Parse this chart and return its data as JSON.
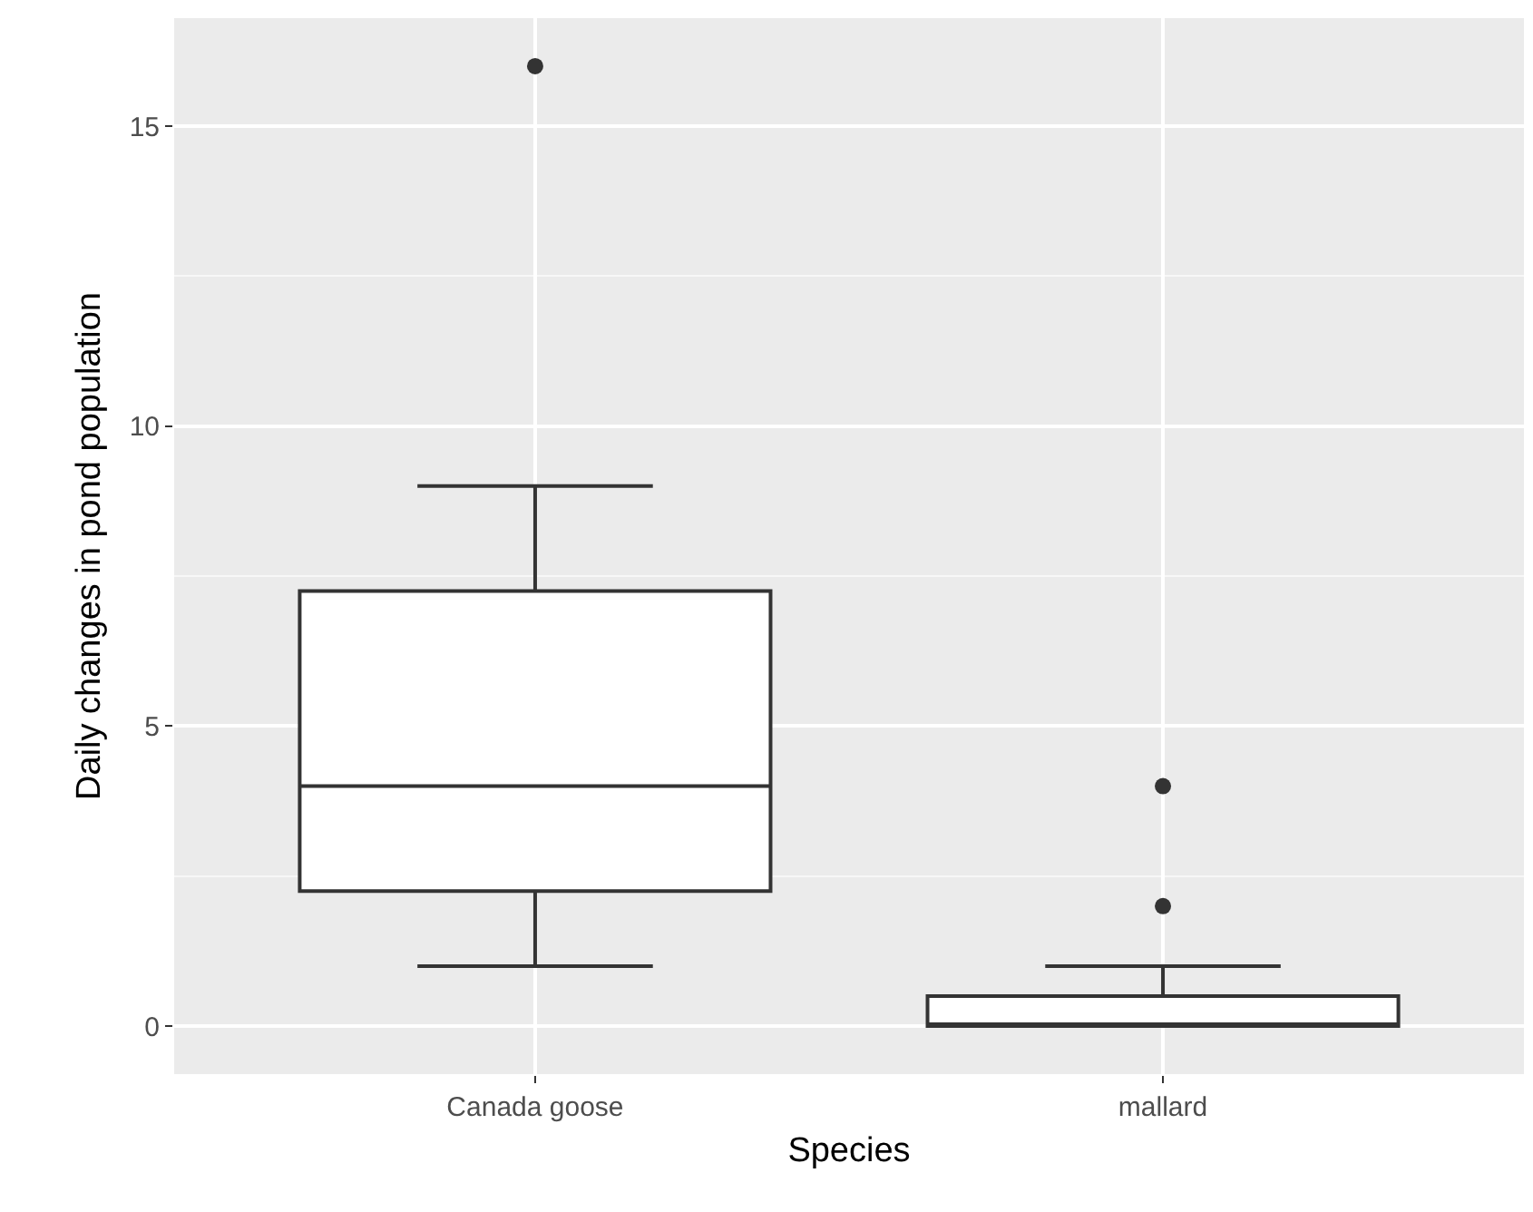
{
  "chart_data": {
    "type": "box",
    "xlabel": "Species",
    "ylabel": "Daily changes in pond population",
    "categories": [
      "Canada goose",
      "mallard"
    ],
    "boxes": [
      {
        "low": 1,
        "q1": 2.25,
        "median": 4,
        "q3": 7.25,
        "high": 9,
        "outliers": [
          16
        ]
      },
      {
        "low": 0,
        "q1": 0,
        "median": 0,
        "q3": 0.5,
        "high": 1,
        "outliers": [
          4,
          2
        ]
      }
    ],
    "color": "#333333",
    "ylim": [
      -0.8,
      16.8
    ],
    "yticks": [
      0,
      5,
      10,
      15
    ],
    "grid": true
  }
}
